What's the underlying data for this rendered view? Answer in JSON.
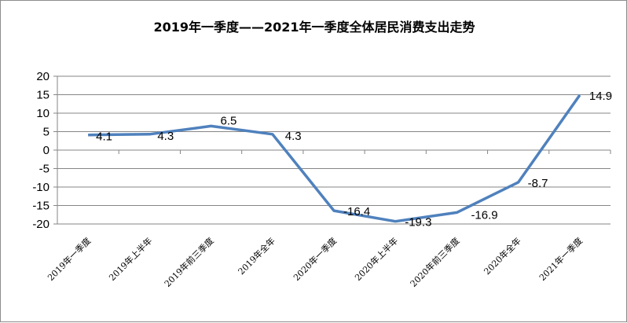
{
  "title": "2019年一季度——2021年一季度全体居民消费支出走势",
  "chart_data": {
    "type": "line",
    "title": "2019年一季度——2021年一季度全体居民消费支出走势",
    "categories": [
      "2019年一季度",
      "2019年上半年",
      "2019年前三季度",
      "2019年全年",
      "2020年一季度",
      "2020年上半年",
      "2020年前三季度",
      "2020年全年",
      "2021年一季度"
    ],
    "values": [
      4.1,
      4.3,
      6.5,
      4.3,
      -16.4,
      -19.3,
      -16.9,
      -8.7,
      14.9
    ],
    "data_labels": [
      "4.1",
      "4.3",
      "6.5",
      "4.3",
      "-16.4",
      "-19.3",
      "-16.9",
      "-8.7",
      "14.9"
    ],
    "ylim": [
      -20,
      20
    ],
    "yticks": [
      20,
      15,
      10,
      5,
      0,
      -5,
      -10,
      -15,
      -20
    ],
    "grid": true,
    "line_color": "#4F81BD"
  }
}
